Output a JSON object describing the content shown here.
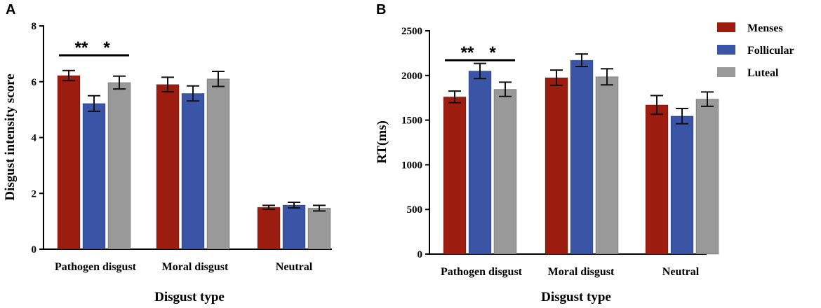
{
  "colors": {
    "Menses": "#9c1c10",
    "Follicular": "#3a55a6",
    "Luteal": "#999999",
    "error": "#111111",
    "axis": "#000000"
  },
  "legend": {
    "entries": [
      "Menses",
      "Follicular",
      "Luteal"
    ]
  },
  "chart_data": [
    {
      "panel_label": "A",
      "type": "bar",
      "ylabel": "Disgust intensity score",
      "xlabel": "Disgust type",
      "ylim": [
        0,
        8
      ],
      "yticks": [
        0,
        2,
        4,
        6,
        8
      ],
      "tick_labels": [
        "0",
        "2",
        "4",
        "6",
        "8"
      ],
      "categories": [
        "Pathogen disgust",
        "Moral disgust",
        "Neutral"
      ],
      "series": [
        {
          "name": "Menses",
          "values": [
            6.22,
            5.9,
            1.5
          ],
          "errors": [
            0.18,
            0.26,
            0.07
          ]
        },
        {
          "name": "Follicular",
          "values": [
            5.22,
            5.58,
            1.58
          ],
          "errors": [
            0.28,
            0.27,
            0.1
          ]
        },
        {
          "name": "Luteal",
          "values": [
            5.97,
            6.1,
            1.47
          ],
          "errors": [
            0.23,
            0.27,
            0.1
          ]
        }
      ],
      "significance": [
        {
          "category": 0,
          "from": 0,
          "to": 1,
          "label": "**"
        },
        {
          "category": 0,
          "from": 1,
          "to": 2,
          "label": "*"
        }
      ]
    },
    {
      "panel_label": "B",
      "type": "bar",
      "ylabel": "RT(ms)",
      "xlabel": "Disgust type",
      "ylim": [
        0,
        2500
      ],
      "yticks": [
        0,
        500,
        1000,
        1500,
        2000,
        2500
      ],
      "tick_labels": [
        "0",
        "500",
        "1000",
        "1500",
        "2000",
        "2500"
      ],
      "categories": [
        "Pathogen disgust",
        "Moral disgust",
        "Neutral"
      ],
      "series": [
        {
          "name": "Menses",
          "values": [
            1760,
            1975,
            1670
          ],
          "errors": [
            65,
            85,
            105
          ]
        },
        {
          "name": "Follicular",
          "values": [
            2050,
            2170,
            1545
          ],
          "errors": [
            85,
            70,
            85
          ]
        },
        {
          "name": "Luteal",
          "values": [
            1845,
            1985,
            1735
          ],
          "errors": [
            80,
            90,
            80
          ]
        }
      ],
      "significance": [
        {
          "category": 0,
          "from": 0,
          "to": 1,
          "label": "**"
        },
        {
          "category": 0,
          "from": 1,
          "to": 2,
          "label": "*"
        }
      ]
    }
  ]
}
